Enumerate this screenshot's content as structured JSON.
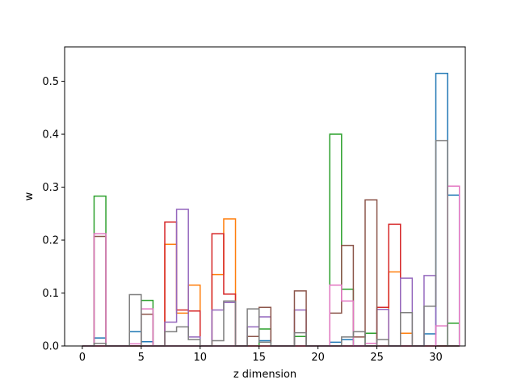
{
  "chart_data": {
    "type": "histogram-step",
    "xlabel": "z dimension",
    "ylabel": "w",
    "xlim": [
      -1.5,
      32.5
    ],
    "ylim": [
      0,
      0.565
    ],
    "xticks": [
      0,
      5,
      10,
      15,
      20,
      25,
      30
    ],
    "yticks": [
      0.0,
      0.1,
      0.2,
      0.3,
      0.4,
      0.5
    ],
    "ytick_labels": [
      "0.0",
      "0.1",
      "0.2",
      "0.3",
      "0.4",
      "0.5"
    ],
    "bin_edges": [
      0,
      1,
      2,
      3,
      4,
      5,
      6,
      7,
      8,
      9,
      10,
      11,
      12,
      13,
      14,
      15,
      16,
      17,
      18,
      19,
      20,
      21,
      22,
      23,
      24,
      25,
      26,
      27,
      28,
      29,
      30,
      31
    ],
    "series": [
      {
        "color": "#1f77b4",
        "values": [
          0.0,
          0.015,
          0.0,
          0.0,
          0.027,
          0.008,
          0.0,
          0.0,
          0.0,
          0.0,
          0.0,
          0.0,
          0.0,
          0.0,
          0.0,
          0.01,
          0.0,
          0.0,
          0.0,
          0.0,
          0.0,
          0.007,
          0.012,
          0.0,
          0.0,
          0.0,
          0.0,
          0.0,
          0.0,
          0.023,
          0.515,
          0.285
        ]
      },
      {
        "color": "#ff7f0e",
        "values": [
          0.0,
          0.0,
          0.0,
          0.0,
          0.0,
          0.0,
          0.0,
          0.192,
          0.062,
          0.115,
          0.0,
          0.135,
          0.24,
          0.0,
          0.0,
          0.0,
          0.0,
          0.0,
          0.0,
          0.0,
          0.0,
          0.0,
          0.0,
          0.0,
          0.0,
          0.0,
          0.14,
          0.024,
          0.0,
          0.0,
          0.0,
          0.0
        ]
      },
      {
        "color": "#2ca02c",
        "values": [
          0.0,
          0.283,
          0.0,
          0.0,
          0.0,
          0.086,
          0.0,
          0.0,
          0.0,
          0.0,
          0.0,
          0.0,
          0.0,
          0.0,
          0.0,
          0.032,
          0.0,
          0.0,
          0.018,
          0.0,
          0.0,
          0.4,
          0.107,
          0.0,
          0.024,
          0.0,
          0.0,
          0.0,
          0.0,
          0.0,
          0.0,
          0.043
        ]
      },
      {
        "color": "#d62728",
        "values": [
          0.0,
          0.0,
          0.0,
          0.0,
          0.0,
          0.0,
          0.0,
          0.234,
          0.068,
          0.066,
          0.0,
          0.212,
          0.098,
          0.0,
          0.0,
          0.0,
          0.0,
          0.0,
          0.0,
          0.0,
          0.0,
          0.0,
          0.0,
          0.0,
          0.0,
          0.073,
          0.23,
          0.0,
          0.0,
          0.0,
          0.0,
          0.0
        ]
      },
      {
        "color": "#9467bd",
        "values": [
          0.0,
          0.0,
          0.0,
          0.0,
          0.0,
          0.0,
          0.0,
          0.045,
          0.258,
          0.017,
          0.0,
          0.068,
          0.082,
          0.0,
          0.036,
          0.055,
          0.0,
          0.0,
          0.068,
          0.0,
          0.0,
          0.0,
          0.0,
          0.0,
          0.0,
          0.069,
          0.0,
          0.128,
          0.0,
          0.133,
          0.0,
          0.0
        ]
      },
      {
        "color": "#8c564b",
        "values": [
          0.0,
          0.207,
          0.0,
          0.0,
          0.0,
          0.06,
          0.0,
          0.0,
          0.0,
          0.0,
          0.0,
          0.0,
          0.0,
          0.0,
          0.018,
          0.073,
          0.0,
          0.0,
          0.104,
          0.0,
          0.0,
          0.062,
          0.19,
          0.017,
          0.276,
          0.0,
          0.0,
          0.0,
          0.0,
          0.0,
          0.0,
          0.0
        ]
      },
      {
        "color": "#e377c2",
        "values": [
          0.0,
          0.212,
          0.0,
          0.0,
          0.004,
          0.07,
          0.0,
          0.0,
          0.0,
          0.0,
          0.0,
          0.0,
          0.0,
          0.0,
          0.0,
          0.0,
          0.0,
          0.0,
          0.0,
          0.0,
          0.0,
          0.115,
          0.085,
          0.0,
          0.005,
          0.0,
          0.0,
          0.0,
          0.0,
          0.0,
          0.038,
          0.302
        ]
      },
      {
        "color": "#7f7f7f",
        "values": [
          0.0,
          0.005,
          0.0,
          0.0,
          0.097,
          0.0,
          0.0,
          0.027,
          0.036,
          0.012,
          0.0,
          0.01,
          0.085,
          0.0,
          0.07,
          0.007,
          0.0,
          0.0,
          0.025,
          0.0,
          0.0,
          0.0,
          0.017,
          0.027,
          0.0,
          0.012,
          0.0,
          0.063,
          0.0,
          0.075,
          0.388,
          0.0
        ]
      }
    ]
  }
}
